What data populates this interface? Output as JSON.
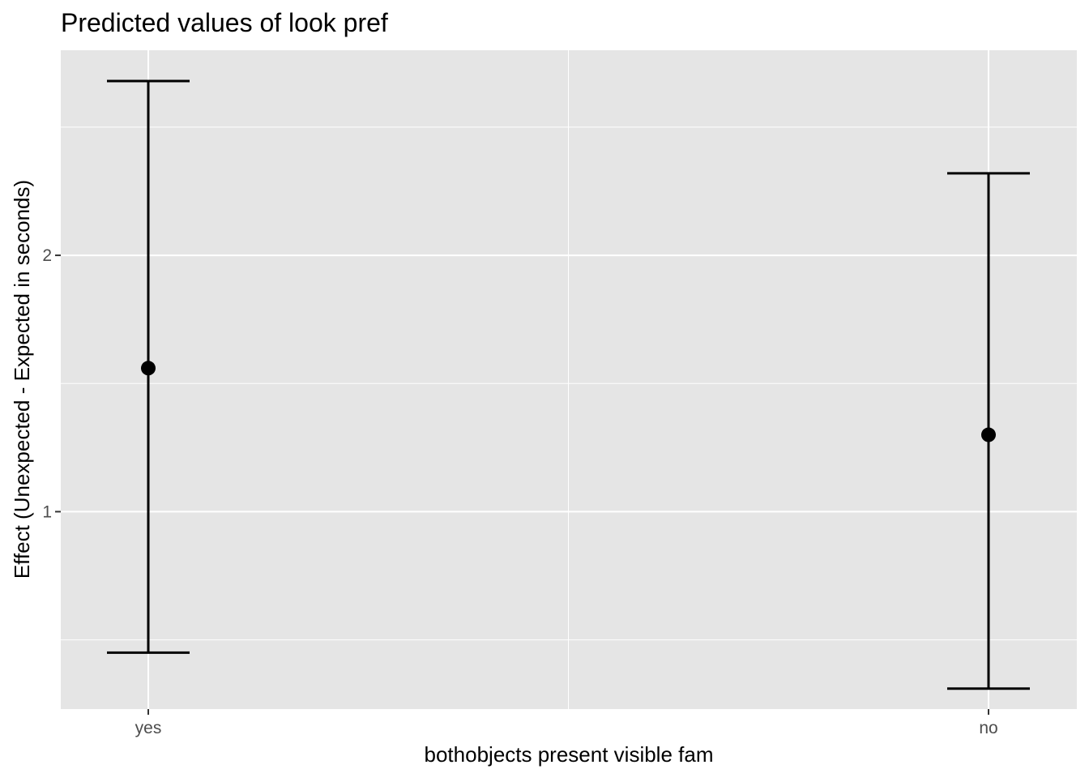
{
  "chart_data": {
    "type": "errorbar",
    "title": "Predicted values of look pref",
    "xlabel": "bothobjects present visible fam",
    "ylabel": "Effect (Unexpected - Expected in seconds)",
    "categories": [
      "yes",
      "no"
    ],
    "series": [
      {
        "values": [
          1.56,
          1.3
        ],
        "lower": [
          0.45,
          0.31
        ],
        "upper": [
          2.68,
          2.32
        ]
      }
    ],
    "ylim": [
      0.23,
      2.8
    ],
    "yticks": [
      1,
      2
    ],
    "ytick_labels": [
      "1",
      "2"
    ],
    "grid": true,
    "background": "#e5e5e5",
    "grid_color": "#ffffff",
    "mark_color": "#000000"
  }
}
